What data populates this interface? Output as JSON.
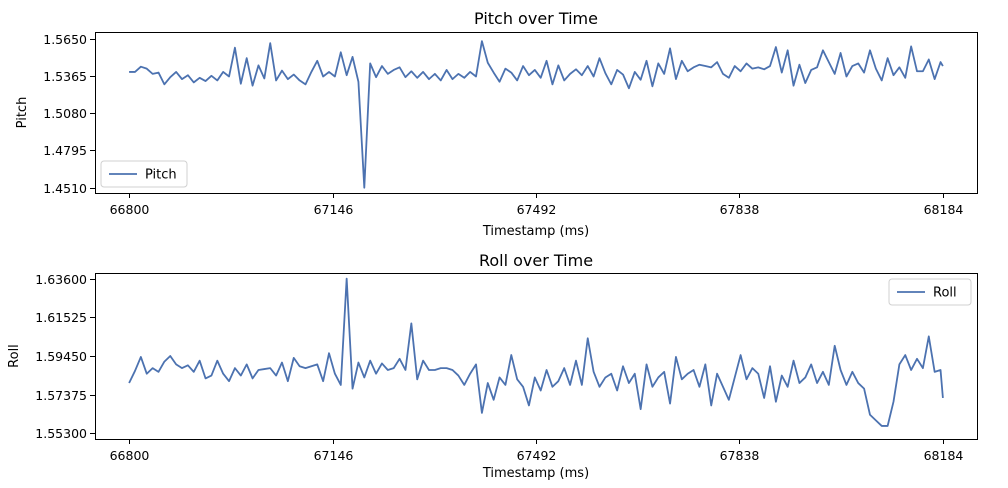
{
  "chart_data": [
    {
      "type": "line",
      "title": "Pitch over Time",
      "xlabel": "Timestamp (ms)",
      "ylabel": "Pitch",
      "xlim": [
        66742,
        68242
      ],
      "ylim": [
        1.447,
        1.57
      ],
      "x_ticks": [
        66800,
        67146,
        67492,
        67838,
        68184
      ],
      "x_tick_labels": [
        "66800",
        "67146",
        "67492",
        "67838",
        "68184"
      ],
      "y_ticks": [
        1.451,
        1.4795,
        1.508,
        1.5365,
        1.565
      ],
      "y_tick_labels": [
        "1.4510",
        "1.4795",
        "1.5080",
        "1.5365",
        "1.5650"
      ],
      "legend": {
        "position": "lower-left"
      },
      "grid": false,
      "color": "#4c72b0",
      "series": [
        {
          "name": "Pitch",
          "x": [
            66800,
            66810,
            66820,
            66830,
            66840,
            66850,
            66860,
            66870,
            66880,
            66890,
            66900,
            66910,
            66920,
            66930,
            66940,
            66950,
            66960,
            66970,
            66980,
            66990,
            67000,
            67010,
            67020,
            67030,
            67040,
            67050,
            67060,
            67070,
            67080,
            67090,
            67100,
            67110,
            67120,
            67130,
            67140,
            67150,
            67160,
            67170,
            67180,
            67190,
            67200,
            67210,
            67220,
            67230,
            67240,
            67250,
            67260,
            67270,
            67280,
            67290,
            67300,
            67310,
            67320,
            67330,
            67340,
            67350,
            67360,
            67370,
            67380,
            67390,
            67400,
            67410,
            67420,
            67430,
            67440,
            67450,
            67460,
            67470,
            67480,
            67490,
            67500,
            67510,
            67520,
            67530,
            67540,
            67550,
            67560,
            67570,
            67580,
            67590,
            67600,
            67610,
            67620,
            67630,
            67640,
            67650,
            67660,
            67670,
            67680,
            67690,
            67700,
            67710,
            67720,
            67730,
            67740,
            67750,
            67760,
            67770,
            67780,
            67790,
            67800,
            67810,
            67820,
            67830,
            67840,
            67850,
            67860,
            67870,
            67880,
            67890,
            67900,
            67910,
            67920,
            67930,
            67940,
            67950,
            67960,
            67970,
            67980,
            67990,
            68000,
            68010,
            68020,
            68030,
            68040,
            68050,
            68060,
            68070,
            68080,
            68090,
            68100,
            68110,
            68120,
            68130,
            68140,
            68150,
            68160,
            68170,
            68180,
            68184
          ],
          "y": [
            1.5395,
            1.5395,
            1.5435,
            1.542,
            1.538,
            1.539,
            1.53,
            1.5355,
            1.5395,
            1.534,
            1.537,
            1.5315,
            1.535,
            1.5325,
            1.5365,
            1.533,
            1.5395,
            1.536,
            1.558,
            1.5305,
            1.55,
            1.529,
            1.5445,
            1.5345,
            1.5615,
            1.533,
            1.5405,
            1.534,
            1.5375,
            1.533,
            1.53,
            1.5395,
            1.548,
            1.536,
            1.5395,
            1.536,
            1.5545,
            1.537,
            1.551,
            1.532,
            1.451,
            1.546,
            1.5355,
            1.544,
            1.538,
            1.541,
            1.543,
            1.5355,
            1.54,
            1.535,
            1.5395,
            1.534,
            1.538,
            1.533,
            1.541,
            1.534,
            1.538,
            1.535,
            1.5395,
            1.536,
            1.563,
            1.5465,
            1.539,
            1.532,
            1.542,
            1.539,
            1.533,
            1.544,
            1.537,
            1.541,
            1.535,
            1.548,
            1.53,
            1.5445,
            1.533,
            1.538,
            1.5415,
            1.537,
            1.544,
            1.536,
            1.55,
            1.5385,
            1.53,
            1.541,
            1.5375,
            1.527,
            1.5395,
            1.5335,
            1.548,
            1.5285,
            1.546,
            1.538,
            1.5575,
            1.534,
            1.548,
            1.54,
            1.543,
            1.545,
            1.544,
            1.543,
            1.547,
            1.538,
            1.535,
            1.544,
            1.54,
            1.546,
            1.542,
            1.543,
            1.5415,
            1.544,
            1.5585,
            1.539,
            1.556,
            1.529,
            1.545,
            1.531,
            1.541,
            1.543,
            1.556,
            1.547,
            1.538,
            1.554,
            1.536,
            1.544,
            1.546,
            1.539,
            1.556,
            1.542,
            1.533,
            1.55,
            1.537,
            1.543,
            1.535,
            1.559,
            1.54,
            1.54,
            1.549,
            1.534,
            1.547,
            1.544
          ]
        }
      ]
    },
    {
      "type": "line",
      "title": "Roll over Time",
      "xlabel": "Timestamp (ms)",
      "ylabel": "Roll",
      "xlim": [
        66742,
        68242
      ],
      "ylim": [
        1.55,
        1.639
      ],
      "x_ticks": [
        66800,
        67146,
        67492,
        67838,
        68184
      ],
      "x_tick_labels": [
        "66800",
        "67146",
        "67492",
        "67838",
        "68184"
      ],
      "y_ticks": [
        1.553,
        1.57375,
        1.5945,
        1.61525,
        1.636
      ],
      "y_tick_labels": [
        "1.55300",
        "1.57375",
        "1.59450",
        "1.61525",
        "1.63600"
      ],
      "legend": {
        "position": "upper-right"
      },
      "grid": false,
      "color": "#4c72b0",
      "series": [
        {
          "name": "Roll",
          "x": [
            66800,
            66810,
            66820,
            66830,
            66840,
            66850,
            66860,
            66870,
            66880,
            66890,
            66900,
            66910,
            66920,
            66930,
            66940,
            66950,
            66960,
            66970,
            66980,
            66990,
            67000,
            67010,
            67020,
            67030,
            67040,
            67050,
            67060,
            67070,
            67080,
            67090,
            67100,
            67110,
            67120,
            67130,
            67140,
            67150,
            67160,
            67170,
            67180,
            67190,
            67200,
            67210,
            67220,
            67230,
            67240,
            67250,
            67260,
            67270,
            67280,
            67290,
            67300,
            67310,
            67320,
            67330,
            67340,
            67350,
            67360,
            67370,
            67380,
            67390,
            67400,
            67410,
            67420,
            67430,
            67440,
            67450,
            67460,
            67470,
            67480,
            67490,
            67500,
            67510,
            67520,
            67530,
            67540,
            67550,
            67560,
            67570,
            67580,
            67590,
            67600,
            67610,
            67620,
            67630,
            67640,
            67650,
            67660,
            67670,
            67680,
            67690,
            67700,
            67710,
            67720,
            67730,
            67740,
            67750,
            67760,
            67770,
            67780,
            67790,
            67800,
            67810,
            67820,
            67830,
            67840,
            67850,
            67860,
            67870,
            67880,
            67890,
            67900,
            67910,
            67920,
            67930,
            67940,
            67950,
            67960,
            67970,
            67980,
            67990,
            68000,
            68010,
            68020,
            68030,
            68040,
            68050,
            68060,
            68070,
            68080,
            68090,
            68100,
            68110,
            68120,
            68130,
            68140,
            68150,
            68160,
            68170,
            68180,
            68184
          ],
          "y": [
            1.58,
            1.5865,
            1.594,
            1.585,
            1.588,
            1.586,
            1.5915,
            1.5945,
            1.59,
            1.588,
            1.5895,
            1.586,
            1.592,
            1.5825,
            1.584,
            1.592,
            1.585,
            1.581,
            1.588,
            1.584,
            1.59,
            1.5825,
            1.587,
            1.5875,
            1.588,
            1.584,
            1.591,
            1.581,
            1.5935,
            1.589,
            1.588,
            1.589,
            1.59,
            1.581,
            1.596,
            1.585,
            1.579,
            1.636,
            1.577,
            1.591,
            1.583,
            1.592,
            1.585,
            1.5905,
            1.587,
            1.588,
            1.593,
            1.587,
            1.612,
            1.582,
            1.592,
            1.587,
            1.587,
            1.588,
            1.588,
            1.587,
            1.584,
            1.579,
            1.585,
            1.59,
            1.564,
            1.58,
            1.571,
            1.583,
            1.579,
            1.595,
            1.582,
            1.578,
            1.568,
            1.583,
            1.576,
            1.587,
            1.578,
            1.581,
            1.588,
            1.579,
            1.592,
            1.579,
            1.604,
            1.586,
            1.578,
            1.583,
            1.585,
            1.576,
            1.589,
            1.58,
            1.585,
            1.566,
            1.59,
            1.578,
            1.583,
            1.586,
            1.569,
            1.594,
            1.582,
            1.585,
            1.587,
            1.578,
            1.59,
            1.568,
            1.585,
            1.578,
            1.571,
            1.583,
            1.595,
            1.582,
            1.588,
            1.585,
            1.572,
            1.589,
            1.57,
            1.584,
            1.578,
            1.592,
            1.58,
            1.583,
            1.59,
            1.58,
            1.586,
            1.579,
            1.6,
            1.587,
            1.579,
            1.586,
            1.58,
            1.577,
            1.563,
            1.56,
            1.557,
            1.557,
            1.57,
            1.59,
            1.595,
            1.587,
            1.593,
            1.588,
            1.605,
            1.586,
            1.587,
            1.572
          ]
        }
      ]
    }
  ]
}
